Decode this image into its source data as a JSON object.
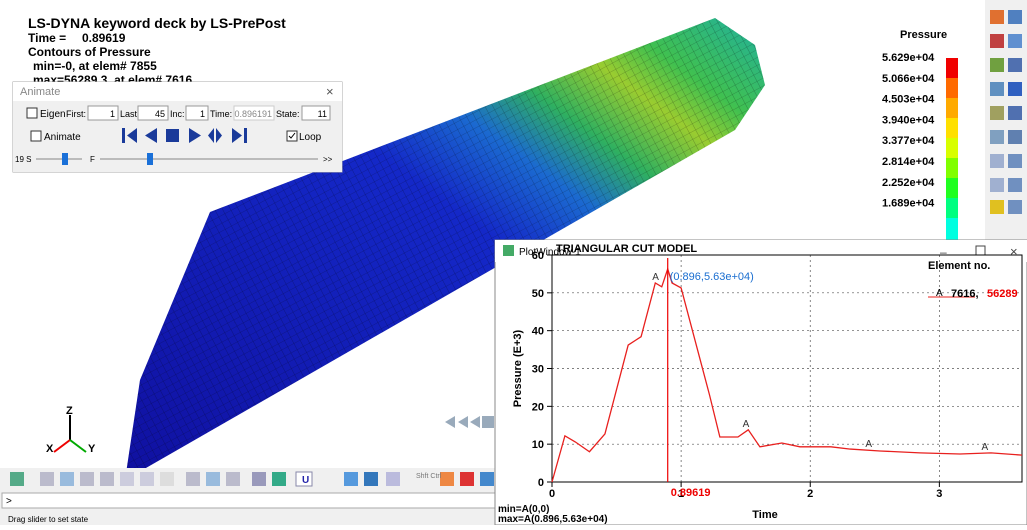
{
  "viewport": {
    "title": "LS-DYNA keyword deck by LS-PrePost",
    "time_label": "Time =",
    "time": "0.89619",
    "contours": "Contours of Pressure",
    "min": "min=-0, at elem# 7855",
    "max": "max=56289.3, at elem# 7616"
  },
  "legend": {
    "title": "Pressure",
    "labels": [
      "5.629e+04",
      "5.066e+04",
      "4.503e+04",
      "3.940e+04",
      "3.377e+04",
      "2.814e+04",
      "2.252e+04",
      "1.689e+04"
    ]
  },
  "animate": {
    "title": "Animate",
    "eigen": "Eigen",
    "first_label": "First:",
    "first": "1",
    "last_label": "Last:",
    "last": "45",
    "inc_label": "Inc:",
    "inc": "1",
    "time_label": "Time:",
    "time": "0.896191",
    "state_label": "State:",
    "state": "11",
    "animate": "Animate",
    "loop": "Loop",
    "speed": "19 S",
    "frame": "F",
    "more": ">>"
  },
  "plot_window": {
    "window_title": "PlotWindow-1",
    "chart": {
      "type": "line",
      "title": "TRIANGULAR CUT MODEL",
      "x_label": "Time",
      "y_label": "Pressure (E+3)",
      "color": "#e8201e",
      "grid": true,
      "x": [
        0,
        0.1,
        0.18,
        0.29,
        0.41,
        0.59,
        0.69,
        0.8,
        0.85,
        0.896,
        0.93,
        1.0,
        1.22,
        1.3,
        1.44,
        1.52,
        1.61,
        1.78,
        1.92,
        2.16,
        2.31,
        2.54,
        2.85,
        3.16,
        3.4,
        3.64
      ],
      "values": [
        0,
        12.2,
        10.6,
        8,
        12.7,
        36.2,
        38.4,
        52.6,
        51.6,
        56.3,
        52.6,
        51.3,
        23,
        11.9,
        11.9,
        13.8,
        9.3,
        10.3,
        9.3,
        9.3,
        8.7,
        8.2,
        7.7,
        7.4,
        7.7,
        7.1
      ],
      "xlim": [
        0,
        3.64
      ],
      "ylim": [
        0,
        60
      ],
      "xticks": [
        0,
        1,
        2,
        3
      ],
      "yticks": [
        0,
        10,
        20,
        30,
        40,
        50,
        60
      ]
    },
    "legend_title": "Element no.",
    "series_label": "A",
    "element": "7616,",
    "element_max": "56289",
    "peak_label": "(0.896,5.63e+04)",
    "cursor": 0.89619,
    "min_text": "min=A(0,0)",
    "max_text": "max=A(0.896,5.63e+04)"
  },
  "toolbar": {
    "shift_ctrl": "Shft Ctrl",
    "u": "U"
  },
  "command": {
    "prompt": ">",
    "status": "Drag slider to set state"
  }
}
